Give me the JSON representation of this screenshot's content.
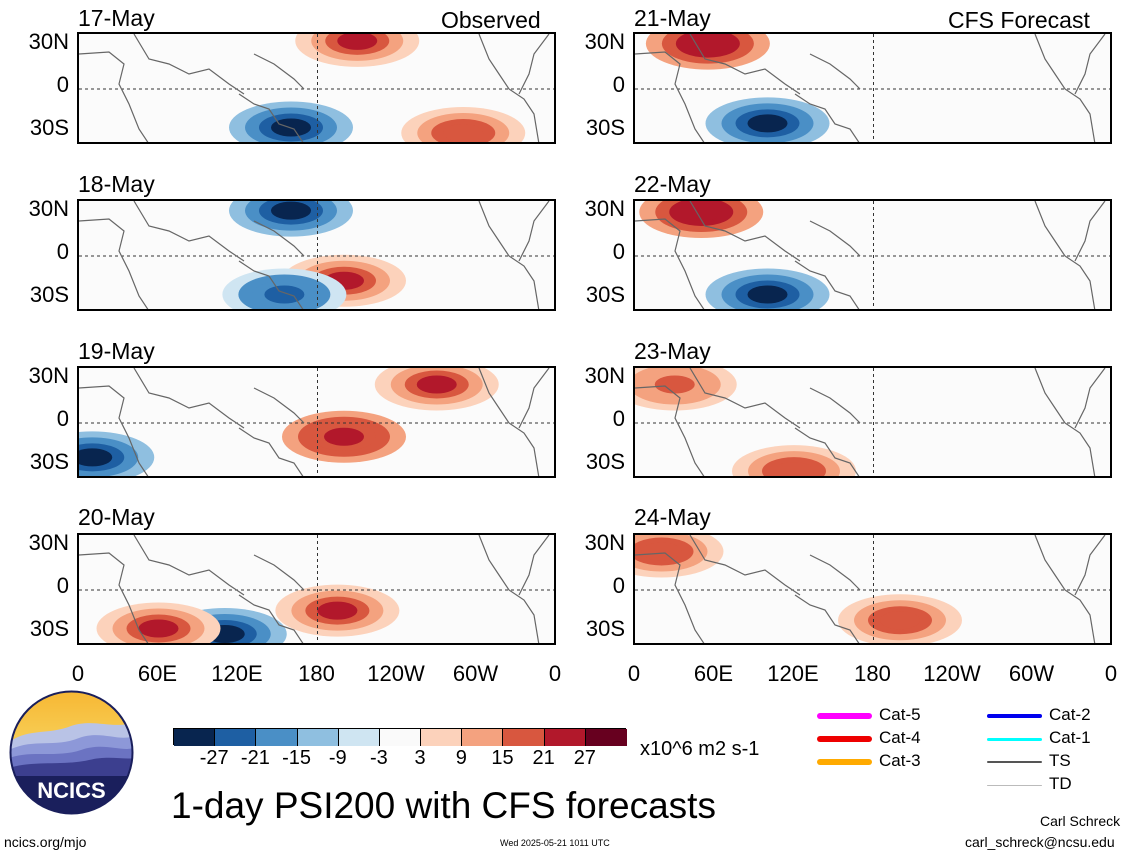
{
  "title": "1-day PSI200 with CFS forecasts",
  "site": "ncics.org/mjo",
  "timestamp": "Wed 2025-05-21 1011 UTC",
  "author": "Carl Schreck",
  "email": "carl_schreck@ncsu.edu",
  "logo_text": "NCICS",
  "columns": {
    "left_label": "Observed",
    "right_label": "CFS Forecast"
  },
  "panels_left": [
    {
      "date": "17-May"
    },
    {
      "date": "18-May"
    },
    {
      "date": "19-May"
    },
    {
      "date": "20-May"
    }
  ],
  "panels_right": [
    {
      "date": "21-May"
    },
    {
      "date": "22-May"
    },
    {
      "date": "23-May"
    },
    {
      "date": "24-May"
    }
  ],
  "chart_data": {
    "type": "heatmap",
    "variable": "200-hPa streamfunction anomaly (PSI200)",
    "units": "x10^6 m2 s-1",
    "x_ticks": [
      "0",
      "60E",
      "120E",
      "180",
      "120W",
      "60W",
      "0"
    ],
    "y_ticks": [
      "30N",
      "0",
      "30S"
    ],
    "colorbar": {
      "ticks": [
        "-27",
        "-21",
        "-15",
        "-9",
        "-3",
        "3",
        "9",
        "15",
        "21",
        "27"
      ],
      "colors": [
        "#08254f",
        "#1e5fa3",
        "#4a8fc6",
        "#8fbfe0",
        "#cfe5f2",
        "#fafafa",
        "#fcd2bb",
        "#f4a27f",
        "#d8573f",
        "#b2182b",
        "#67001f"
      ]
    },
    "features": [
      {
        "date": "17-May",
        "lon": 160,
        "lat": -28,
        "value": -27
      },
      {
        "date": "17-May",
        "lon": 210,
        "lat": 35,
        "value": 25
      },
      {
        "date": "17-May",
        "lon": 290,
        "lat": -32,
        "value": 21
      },
      {
        "date": "18-May",
        "lon": 160,
        "lat": 33,
        "value": -27
      },
      {
        "date": "18-May",
        "lon": 200,
        "lat": -18,
        "value": 24
      },
      {
        "date": "18-May",
        "lon": 155,
        "lat": -28,
        "value": -25
      },
      {
        "date": "19-May",
        "lon": 10,
        "lat": -25,
        "value": -27
      },
      {
        "date": "19-May",
        "lon": 200,
        "lat": -10,
        "value": 26
      },
      {
        "date": "19-May",
        "lon": 270,
        "lat": 28,
        "value": 22
      },
      {
        "date": "20-May",
        "lon": 110,
        "lat": -32,
        "value": -27
      },
      {
        "date": "20-May",
        "lon": 60,
        "lat": -28,
        "value": 24
      },
      {
        "date": "20-May",
        "lon": 195,
        "lat": -15,
        "value": 22
      },
      {
        "date": "21-May",
        "lon": 55,
        "lat": 33,
        "value": 27
      },
      {
        "date": "21-May",
        "lon": 100,
        "lat": -25,
        "value": -27
      },
      {
        "date": "22-May",
        "lon": 50,
        "lat": 32,
        "value": 27
      },
      {
        "date": "22-May",
        "lon": 100,
        "lat": -28,
        "value": -27
      },
      {
        "date": "23-May",
        "lon": 120,
        "lat": -35,
        "value": 21
      },
      {
        "date": "23-May",
        "lon": 30,
        "lat": 28,
        "value": 18
      },
      {
        "date": "24-May",
        "lon": 20,
        "lat": 28,
        "value": 21
      },
      {
        "date": "24-May",
        "lon": 200,
        "lat": -22,
        "value": 20
      }
    ]
  },
  "legend": {
    "items": [
      {
        "label": "Cat-5",
        "color": "#ff00ff",
        "width": 6
      },
      {
        "label": "Cat-4",
        "color": "#ee0000",
        "width": 6
      },
      {
        "label": "Cat-3",
        "color": "#ffaa00",
        "width": 6
      },
      {
        "label": "Cat-2",
        "color": "#0000ee",
        "width": 4
      },
      {
        "label": "Cat-1",
        "color": "#00ffff",
        "width": 3
      },
      {
        "label": "TS",
        "color": "#555555",
        "width": 2
      },
      {
        "label": "TD",
        "color": "#bbbbbb",
        "width": 1
      }
    ]
  }
}
